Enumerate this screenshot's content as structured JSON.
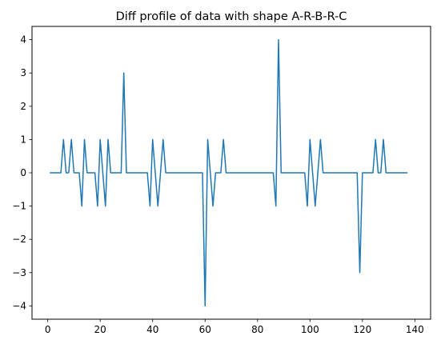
{
  "chart_data": {
    "type": "line",
    "title": "Diff profile of data with shape A-R-B-R-C",
    "xlabel": "",
    "ylabel": "",
    "xlim": [
      -6,
      146
    ],
    "ylim": [
      -4.4,
      4.4
    ],
    "x_ticks": [
      0,
      20,
      40,
      60,
      80,
      100,
      120,
      140
    ],
    "y_ticks": [
      -4,
      -3,
      -2,
      -1,
      0,
      1,
      2,
      3,
      4
    ],
    "x_tick_labels": [
      "0",
      "20",
      "40",
      "60",
      "80",
      "100",
      "120",
      "140"
    ],
    "y_tick_labels": [
      "−4",
      "−3",
      "−2",
      "−1",
      "0",
      "1",
      "2",
      "3",
      "4"
    ],
    "grid": false,
    "series": [
      {
        "color": "#1f77b4",
        "x_start": 1,
        "values": [
          0,
          0,
          0,
          0,
          0,
          1,
          0,
          0,
          1,
          0,
          0,
          0,
          -1,
          1,
          0,
          0,
          0,
          0,
          -1,
          1,
          0,
          -1,
          1,
          0,
          0,
          0,
          0,
          0,
          3,
          0,
          0,
          0,
          0,
          0,
          0,
          0,
          0,
          0,
          -1,
          1,
          0,
          -1,
          0,
          1,
          0,
          0,
          0,
          0,
          0,
          0,
          0,
          0,
          0,
          0,
          0,
          0,
          0,
          0,
          0,
          -4,
          1,
          0,
          -1,
          0,
          0,
          0,
          1,
          0,
          0,
          0,
          0,
          0,
          0,
          0,
          0,
          0,
          0,
          0,
          0,
          0,
          0,
          0,
          0,
          0,
          0,
          0,
          -1,
          4,
          0,
          0,
          0,
          0,
          0,
          0,
          0,
          0,
          0,
          0,
          -1,
          1,
          0,
          -1,
          0,
          1,
          0,
          0,
          0,
          0,
          0,
          0,
          0,
          0,
          0,
          0,
          0,
          0,
          0,
          0,
          -3,
          0,
          0,
          0,
          0,
          0,
          1,
          0,
          0,
          1,
          0,
          0,
          0,
          0,
          0,
          0,
          0,
          0,
          0
        ]
      }
    ]
  }
}
